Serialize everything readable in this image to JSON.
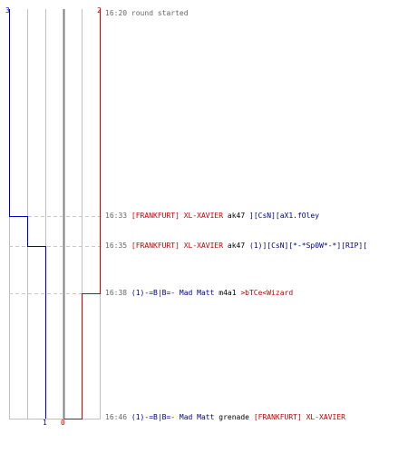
{
  "colors": {
    "team_red": "#cc0000",
    "team_blue": "#0000cc",
    "grid": "#c0c0c0",
    "center": "#808080",
    "dash": "#c8c8c8",
    "text_dark": "#000000",
    "name_blue": "#00008b",
    "time": "#666666"
  },
  "score": {
    "blue_start": "3",
    "red_start": "2",
    "blue_end": "1",
    "red_end": "0"
  },
  "events": [
    {
      "time": "16:20",
      "message": "round started"
    },
    {
      "time": "16:33",
      "killer": "[FRANKFURT] XL-XAVIER",
      "weapon": "ak47",
      "victim": "][CsN][aX1.fOley"
    },
    {
      "time": "16:35",
      "killer": "[FRANKFURT] XL-XAVIER",
      "weapon": "ak47",
      "victim": "(1)][CsN][*-*Sp0W*-*][RIP]["
    },
    {
      "time": "16:38",
      "killer": "(1)-=B|B=- Mad Matt",
      "weapon": "m4a1",
      "victim": ">bTCe<Wizard"
    },
    {
      "time": "16:46",
      "killer": "(1)-=B|B=- Mad Matt",
      "weapon": "grenade",
      "victim": "[FRANKFURT] XL-XAVIER"
    }
  ]
}
